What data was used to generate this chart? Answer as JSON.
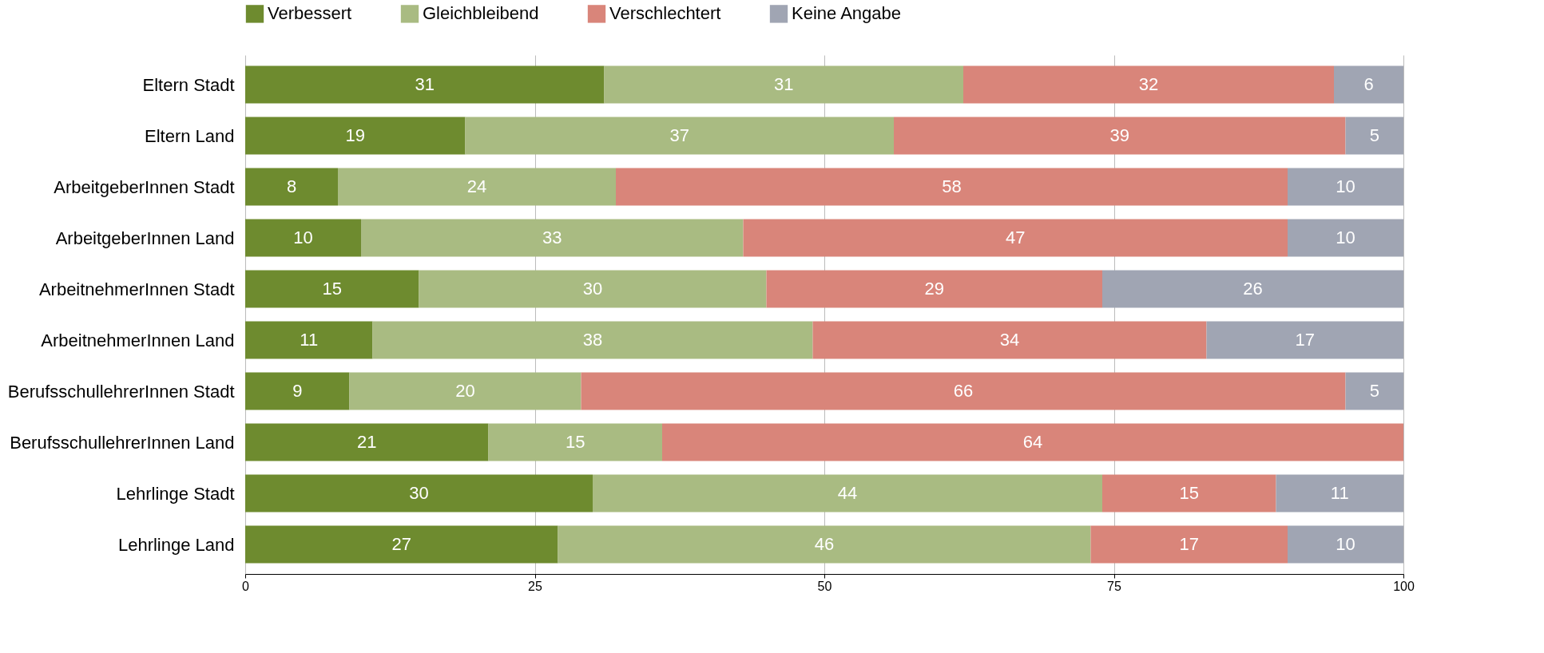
{
  "chart_data": {
    "type": "bar",
    "orientation": "horizontal",
    "stacked": true,
    "data_labels": true,
    "legend": "top",
    "grid": "x",
    "categories": [
      "Eltern Stadt",
      "Eltern  Land",
      "ArbeitgeberInnen Stadt",
      "ArbeitgeberInnen  Land",
      "ArbeitnehmerInnen Stadt",
      "ArbeitnehmerInnen  Land",
      "BerufsschullehrerInnen Stadt",
      "BerufsschullehrerInnen  Land",
      "Lehrlinge Stadt",
      "Lehrlinge  Land"
    ],
    "xlim": [
      0,
      100
    ],
    "xticks": [
      0,
      25,
      50,
      75,
      100
    ],
    "series": [
      {
        "name": "Verbessert",
        "color": "#6e8b2f",
        "values": [
          31,
          19,
          8,
          10,
          15,
          11,
          9,
          21,
          30,
          27
        ]
      },
      {
        "name": "Gleichbleibend",
        "color": "#a9bb82",
        "values": [
          31,
          37,
          24,
          33,
          30,
          38,
          20,
          15,
          44,
          46
        ]
      },
      {
        "name": "Verschlechtert",
        "color": "#d9857a",
        "values": [
          32,
          39,
          58,
          47,
          29,
          34,
          66,
          64,
          15,
          17
        ]
      },
      {
        "name": "Keine Angabe",
        "color": "#a0a5b3",
        "values": [
          6,
          5,
          10,
          10,
          26,
          17,
          5,
          null,
          11,
          10
        ]
      }
    ]
  }
}
